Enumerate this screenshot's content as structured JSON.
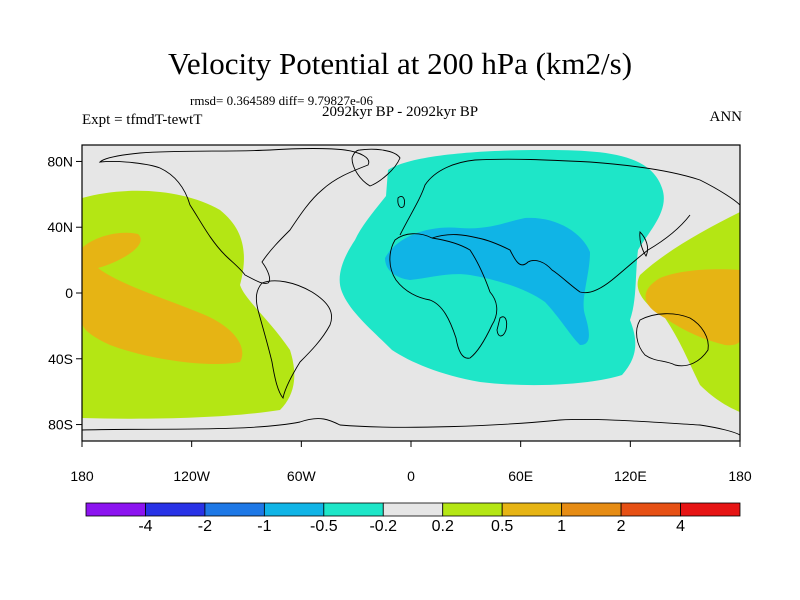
{
  "title": "Velocity Potential at 200 hPa (km2/s)",
  "stats_line": "rmsd= 0.364589 diff= 9.79827e-06",
  "period": "2092kyr BP - 2092kyr BP",
  "experiment": "Expt = tfmdT-tewtT",
  "season": "ANN",
  "map": {
    "lon_range": [
      -180,
      180
    ],
    "lat_range": [
      -90,
      90
    ],
    "lat_ticks": [
      {
        "value": 80,
        "label": "80N"
      },
      {
        "value": 40,
        "label": "40N"
      },
      {
        "value": 0,
        "label": "0"
      },
      {
        "value": -40,
        "label": "40S"
      },
      {
        "value": -80,
        "label": "80S"
      }
    ],
    "lon_ticks": [
      {
        "value": -180,
        "label": "180"
      },
      {
        "value": -120,
        "label": "120W"
      },
      {
        "value": -60,
        "label": "60W"
      },
      {
        "value": 0,
        "label": "0"
      },
      {
        "value": 60,
        "label": "60E"
      },
      {
        "value": 120,
        "label": "120E"
      },
      {
        "value": 180,
        "label": "180"
      }
    ],
    "background_color": "#e6e6e6"
  },
  "colorbar": {
    "colors": [
      "#8c14f0",
      "#2832e6",
      "#1e78e6",
      "#10b4e6",
      "#1ee6c8",
      "#e6e6e6",
      "#b4e614",
      "#e6b414",
      "#e68c14",
      "#e65014",
      "#e61414"
    ],
    "labels": [
      "-4",
      "-2",
      "-1",
      "-0.5",
      "-0.2",
      "0.2",
      "0.5",
      "1",
      "2",
      "4"
    ]
  }
}
